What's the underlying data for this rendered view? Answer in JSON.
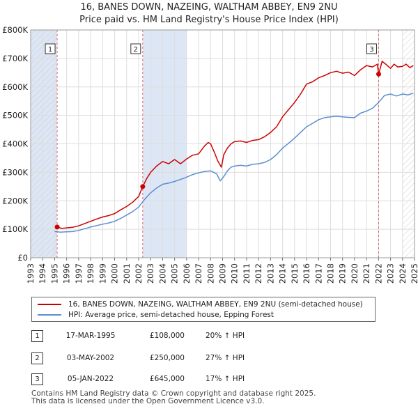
{
  "chart_data": {
    "type": "line",
    "title_line1": "16, BANES DOWN, NAZEING, WALTHAM ABBEY, EN9 2NU",
    "title_line2": "Price paid vs. HM Land Registry's House Price Index (HPI)",
    "xlabel": "",
    "ylabel": "",
    "xlim": [
      1993,
      2025
    ],
    "ylim": [
      0,
      800000
    ],
    "y_ticks": [
      0,
      100000,
      200000,
      300000,
      400000,
      500000,
      600000,
      700000,
      800000
    ],
    "y_tick_labels": [
      "£0",
      "£100K",
      "£200K",
      "£300K",
      "£400K",
      "£500K",
      "£600K",
      "£700K",
      "£800K"
    ],
    "x_ticks": [
      1993,
      1994,
      1995,
      1996,
      1997,
      1998,
      1999,
      2000,
      2001,
      2002,
      2003,
      2004,
      2005,
      2006,
      2007,
      2008,
      2009,
      2010,
      2011,
      2012,
      2013,
      2014,
      2015,
      2016,
      2017,
      2018,
      2019,
      2020,
      2021,
      2022,
      2023,
      2024,
      2025
    ],
    "x_tick_labels": [
      "1993",
      "1994",
      "1995",
      "1996",
      "1997",
      "1998",
      "1999",
      "2000",
      "2001",
      "2002",
      "2003",
      "2004",
      "2005",
      "2006",
      "2007",
      "2008",
      "2009",
      "2010",
      "2011",
      "2012",
      "2013",
      "2014",
      "2015",
      "2016",
      "2017",
      "2018",
      "2019",
      "2020",
      "2021",
      "2022",
      "2023",
      "2024",
      "2025"
    ],
    "grid": true,
    "colors": {
      "property": "#cc0000",
      "hpi": "#5b8ed0",
      "grid": "#dddddd",
      "shade": "#dde6f5",
      "vline": "#e06666",
      "plot_bg": "#ffffff"
    },
    "shaded_ranges": [
      [
        1993,
        1995.21
      ],
      [
        2002.34,
        2006.0
      ]
    ],
    "hatched_ranges": [
      [
        1993,
        1995.21
      ],
      [
        2024.0,
        2025
      ]
    ],
    "series": [
      {
        "name": "16, BANES DOWN, NAZEING, WALTHAM ABBEY, EN9 2NU (semi-detached house)",
        "color": "#cc0000",
        "x": [
          1995.21,
          1995.6,
          1996.0,
          1996.5,
          1997.0,
          1997.5,
          1998.0,
          1998.5,
          1999.0,
          1999.5,
          2000.0,
          2000.5,
          2001.0,
          2001.5,
          2002.0,
          2002.34,
          2002.7,
          2003.0,
          2003.5,
          2004.0,
          2004.5,
          2005.0,
          2005.5,
          2006.0,
          2006.5,
          2007.0,
          2007.5,
          2007.8,
          2008.0,
          2008.3,
          2008.6,
          2008.9,
          2009.1,
          2009.4,
          2009.7,
          2010.0,
          2010.5,
          2011.0,
          2011.5,
          2012.0,
          2012.5,
          2013.0,
          2013.5,
          2014.0,
          2014.5,
          2015.0,
          2015.5,
          2016.0,
          2016.5,
          2017.0,
          2017.5,
          2018.0,
          2018.5,
          2019.0,
          2019.5,
          2020.0,
          2020.5,
          2021.0,
          2021.5,
          2021.9,
          2022.01,
          2022.3,
          2022.6,
          2023.0,
          2023.3,
          2023.6,
          2024.0,
          2024.3,
          2024.6,
          2024.9
        ],
        "values": [
          108000,
          103000,
          105000,
          107000,
          112000,
          120000,
          128000,
          136000,
          143000,
          148000,
          155000,
          168000,
          180000,
          195000,
          215000,
          250000,
          280000,
          300000,
          322000,
          338000,
          330000,
          345000,
          330000,
          347000,
          360000,
          365000,
          393000,
          405000,
          400000,
          372000,
          340000,
          318000,
          362000,
          385000,
          400000,
          408000,
          410000,
          405000,
          412000,
          415000,
          425000,
          440000,
          460000,
          495000,
          520000,
          545000,
          575000,
          610000,
          618000,
          632000,
          640000,
          650000,
          655000,
          648000,
          652000,
          640000,
          660000,
          675000,
          670000,
          680000,
          645000,
          690000,
          680000,
          665000,
          680000,
          670000,
          672000,
          680000,
          668000,
          675000
        ]
      },
      {
        "name": "HPI: Average price, semi-detached house, Epping Forest",
        "color": "#5b8ed0",
        "x": [
          1995.0,
          1995.5,
          1996.0,
          1996.5,
          1997.0,
          1997.5,
          1998.0,
          1998.5,
          1999.0,
          1999.5,
          2000.0,
          2000.5,
          2001.0,
          2001.5,
          2002.0,
          2002.5,
          2003.0,
          2003.5,
          2004.0,
          2004.5,
          2005.0,
          2005.5,
          2006.0,
          2006.5,
          2007.0,
          2007.5,
          2008.0,
          2008.5,
          2008.8,
          2009.1,
          2009.4,
          2009.7,
          2010.0,
          2010.5,
          2011.0,
          2011.5,
          2012.0,
          2012.5,
          2013.0,
          2013.5,
          2014.0,
          2014.5,
          2015.0,
          2015.5,
          2016.0,
          2016.5,
          2017.0,
          2017.5,
          2018.0,
          2018.5,
          2019.0,
          2019.5,
          2020.0,
          2020.5,
          2021.0,
          2021.5,
          2022.0,
          2022.5,
          2023.0,
          2023.5,
          2024.0,
          2024.5,
          2024.9
        ],
        "values": [
          92000,
          90000,
          91000,
          92000,
          96000,
          102000,
          108000,
          113000,
          118000,
          122000,
          128000,
          138000,
          150000,
          162000,
          178000,
          205000,
          228000,
          245000,
          258000,
          262000,
          268000,
          275000,
          283000,
          292000,
          298000,
          303000,
          305000,
          295000,
          270000,
          285000,
          305000,
          318000,
          322000,
          325000,
          322000,
          328000,
          330000,
          335000,
          345000,
          362000,
          385000,
          402000,
          420000,
          440000,
          460000,
          472000,
          485000,
          492000,
          495000,
          497000,
          495000,
          493000,
          492000,
          508000,
          515000,
          525000,
          545000,
          570000,
          575000,
          568000,
          575000,
          572000,
          578000
        ]
      }
    ],
    "markers": [
      {
        "label": "1",
        "x": 1995.21,
        "y": 108000
      },
      {
        "label": "2",
        "x": 2002.34,
        "y": 250000
      },
      {
        "label": "3",
        "x": 2022.01,
        "y": 645000
      }
    ]
  },
  "legend": {
    "property_label": "16, BANES DOWN, NAZEING, WALTHAM ABBEY, EN9 2NU (semi-detached house)",
    "hpi_label": "HPI: Average price, semi-detached house, Epping Forest"
  },
  "transactions": [
    {
      "num": "1",
      "date": "17-MAR-1995",
      "price": "£108,000",
      "hpi": "20% ↑ HPI"
    },
    {
      "num": "2",
      "date": "03-MAY-2002",
      "price": "£250,000",
      "hpi": "27% ↑ HPI"
    },
    {
      "num": "3",
      "date": "05-JAN-2022",
      "price": "£645,000",
      "hpi": "17% ↑ HPI"
    }
  ],
  "footer": {
    "line1": "Contains HM Land Registry data © Crown copyright and database right 2025.",
    "line2": "This data is licensed under the Open Government Licence v3.0."
  }
}
